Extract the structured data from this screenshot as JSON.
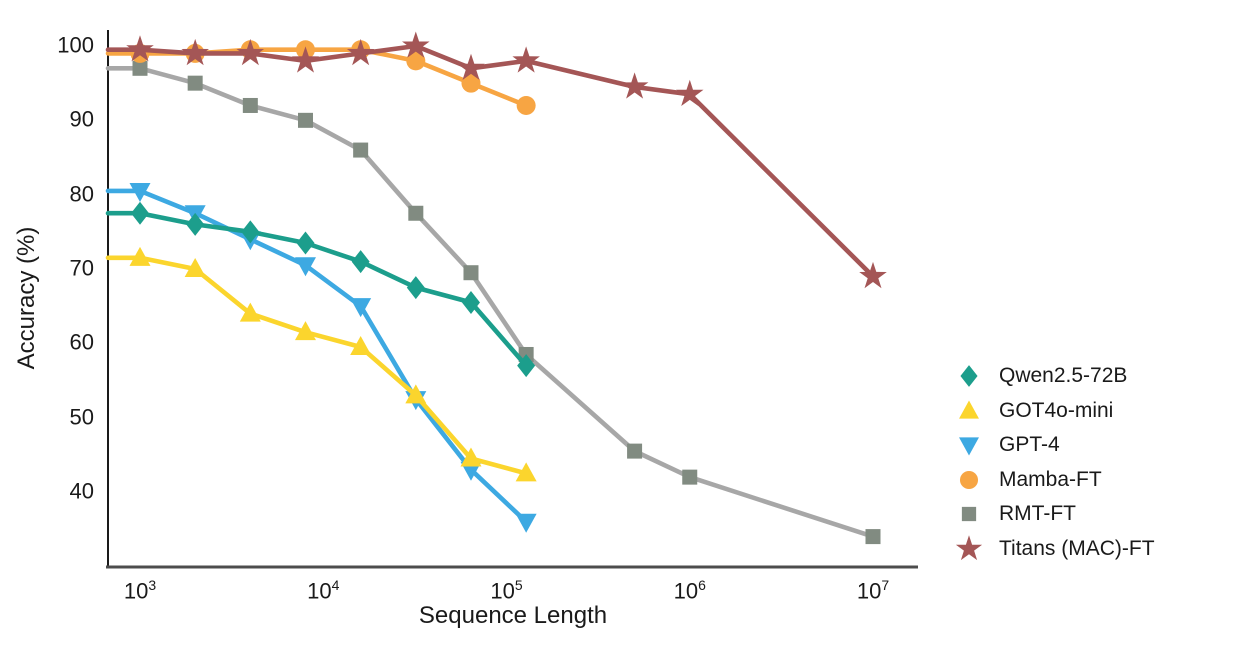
{
  "chart_data": {
    "type": "line",
    "title": "",
    "xlabel": "Sequence Length",
    "ylabel": "Accuracy (%)",
    "x_scale": "log",
    "xlim": [
      670,
      20000000
    ],
    "ylim": [
      30,
      103
    ],
    "grid": false,
    "legend_position": "right",
    "yticks": [
      100,
      90,
      80,
      70,
      60,
      50,
      40
    ],
    "xticks": [
      {
        "base": "10",
        "exp": "3"
      },
      {
        "base": "10",
        "exp": "4"
      },
      {
        "base": "10",
        "exp": "5"
      },
      {
        "base": "10",
        "exp": "6"
      },
      {
        "base": "10",
        "exp": "7"
      }
    ],
    "series": [
      {
        "name": "Qwen2.5-72B",
        "marker": "diamond",
        "color": "#1C9E8C",
        "z": 3,
        "x": [
          1000,
          2000,
          4000,
          8000,
          16000,
          32000,
          64000,
          128000
        ],
        "y": [
          77.5,
          76,
          75,
          73.5,
          71,
          67.5,
          65.5,
          57
        ]
      },
      {
        "name": "GOT4o-mini",
        "marker": "triangle-up",
        "color": "#FBD52D",
        "z": 2,
        "x": [
          1000,
          2000,
          4000,
          8000,
          16000,
          32000,
          64000,
          128000
        ],
        "y": [
          71.5,
          70,
          64,
          61.5,
          59.5,
          53,
          44.5,
          42.5
        ]
      },
      {
        "name": "GPT-4",
        "marker": "triangle-down",
        "color": "#3DA9E2",
        "z": 1,
        "x": [
          1000,
          2000,
          4000,
          8000,
          16000,
          32000,
          64000,
          128000
        ],
        "y": [
          80.5,
          77.5,
          74,
          70.5,
          65,
          52.5,
          43,
          36
        ]
      },
      {
        "name": "Mamba-FT",
        "marker": "circle",
        "color": "#F7A543",
        "z": 4,
        "x": [
          1000,
          2000,
          4000,
          8000,
          16000,
          32000,
          64000,
          128000
        ],
        "y": [
          99,
          99,
          99.5,
          99.5,
          99.5,
          98,
          95,
          92
        ]
      },
      {
        "name": "RMT-FT",
        "marker": "square",
        "color": "#818B81",
        "line_color": "#A7A7A7",
        "z": 0,
        "x": [
          1000,
          2000,
          4000,
          8000,
          16000,
          32000,
          64000,
          128000,
          500000,
          1000000,
          10000000
        ],
        "y": [
          97,
          95,
          92,
          90,
          86,
          77.5,
          69.5,
          58.5,
          45.5,
          42,
          34
        ]
      },
      {
        "name": "Titans (MAC)-FT",
        "marker": "star",
        "color": "#A45656",
        "z": 5,
        "x": [
          1000,
          2000,
          4000,
          8000,
          16000,
          32000,
          64000,
          128000,
          500000,
          1000000,
          10000000
        ],
        "y": [
          99.5,
          99,
          99,
          98,
          99,
          100,
          97,
          98,
          94.5,
          93.5,
          69
        ]
      }
    ]
  }
}
